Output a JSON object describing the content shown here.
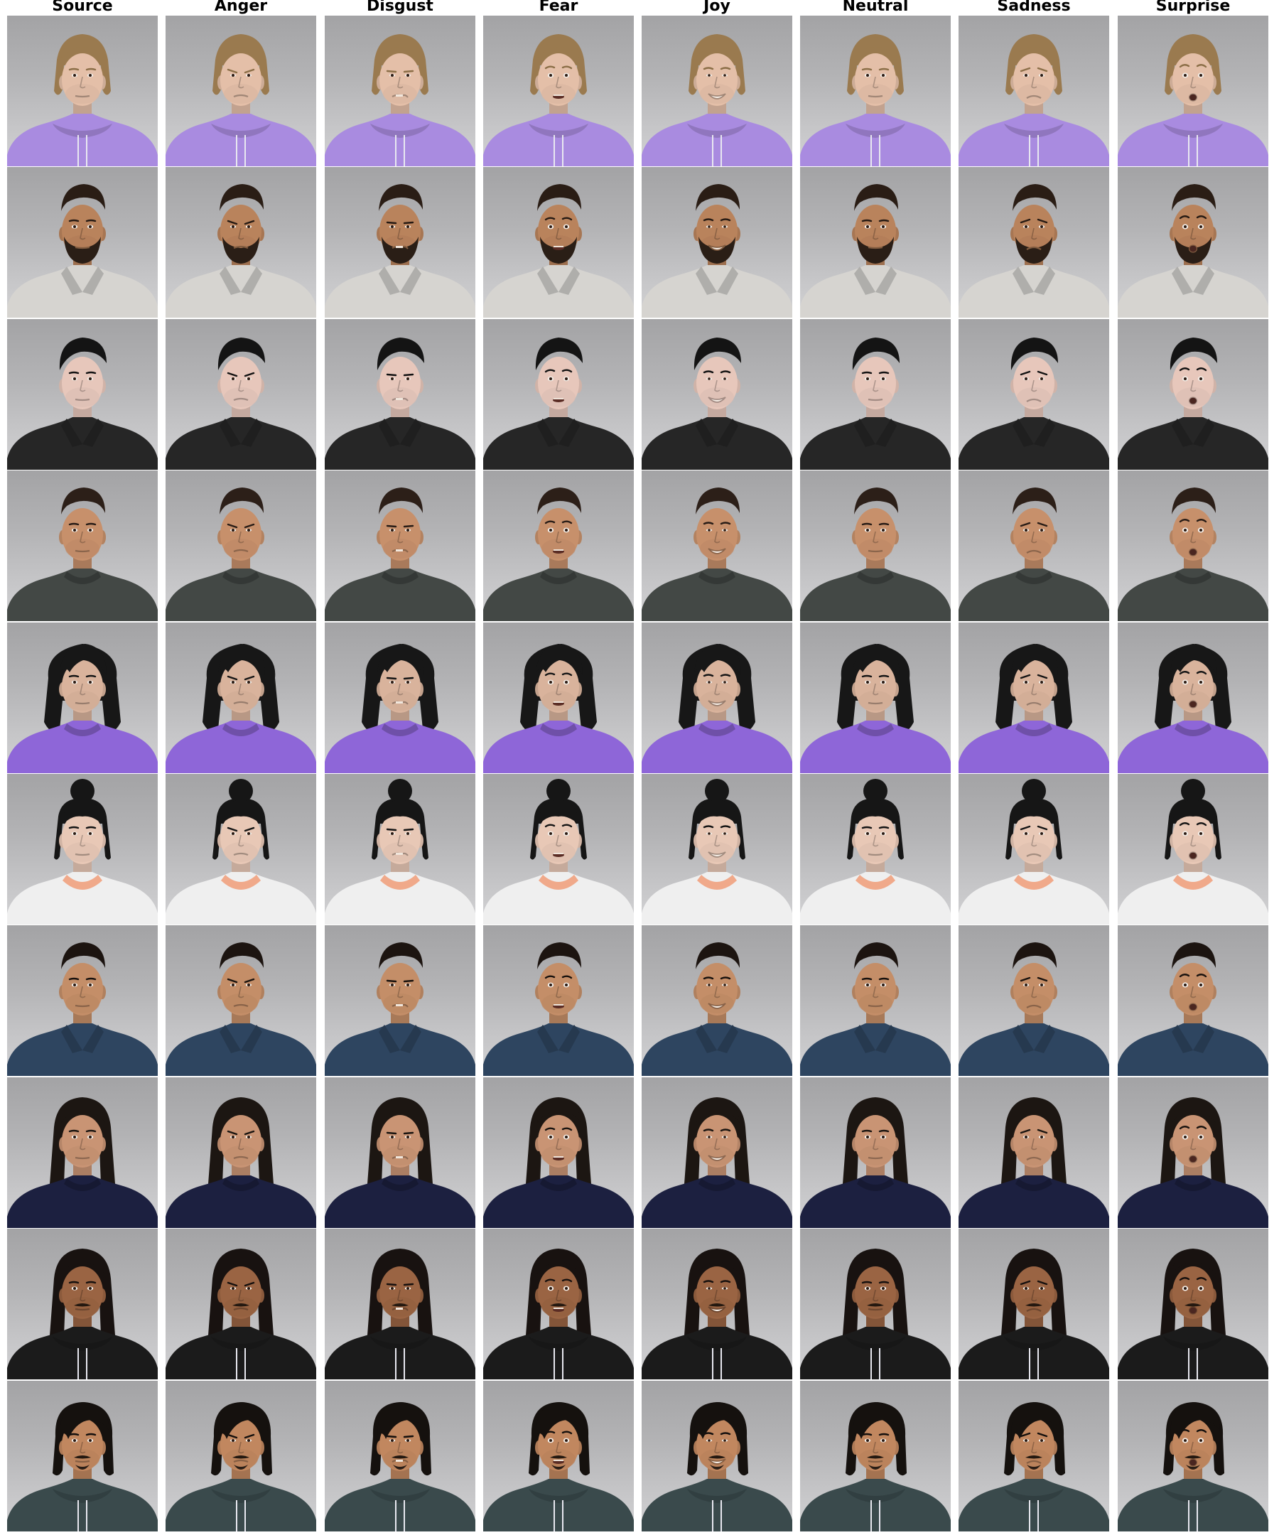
{
  "columns": [
    "Source",
    "Anger",
    "Disgust",
    "Fear",
    "Joy",
    "Neutral",
    "Sadness",
    "Surprise"
  ],
  "rows": [
    {
      "skin": "#e4bfa8",
      "hair": "#9a7a4f",
      "hairStyle": "wavy",
      "shirt": "#a98be0",
      "collar": "hoodie",
      "beard": "none"
    },
    {
      "skin": "#b9835c",
      "hair": "#2a1d15",
      "hairStyle": "short",
      "shirt": "#d6d4d0",
      "collar": "shirt",
      "beard": "full"
    },
    {
      "skin": "#e7c7bb",
      "hair": "#141414",
      "hairStyle": "sidepart",
      "shirt": "#262626",
      "collar": "shirt",
      "beard": "none"
    },
    {
      "skin": "#c7906b",
      "hair": "#2c1f18",
      "hairStyle": "short",
      "shirt": "#434845",
      "collar": "crew",
      "beard": "none"
    },
    {
      "skin": "#d9b39c",
      "hair": "#171717",
      "hairStyle": "bob",
      "shirt": "#8e66d8",
      "collar": "crew",
      "beard": "none"
    },
    {
      "skin": "#e8c8b6",
      "hair": "#161616",
      "hairStyle": "bun",
      "shirt": "#efefef",
      "collar": "peach",
      "beard": "none"
    },
    {
      "skin": "#c48e68",
      "hair": "#1c1410",
      "hairStyle": "short",
      "shirt": "#2e4560",
      "collar": "shirt",
      "beard": "none"
    },
    {
      "skin": "#c99474",
      "hair": "#1c1612",
      "hairStyle": "long",
      "shirt": "#1c2040",
      "collar": "crew",
      "beard": "none"
    },
    {
      "skin": "#9a6443",
      "hair": "#181210",
      "hairStyle": "long",
      "shirt": "#1b1b1b",
      "collar": "hoodie",
      "beard": "moustache"
    },
    {
      "skin": "#c1875f",
      "hair": "#15110e",
      "hairStyle": "shaggy",
      "shirt": "#3a4a4c",
      "collar": "hoodie",
      "beard": "goatee"
    }
  ]
}
